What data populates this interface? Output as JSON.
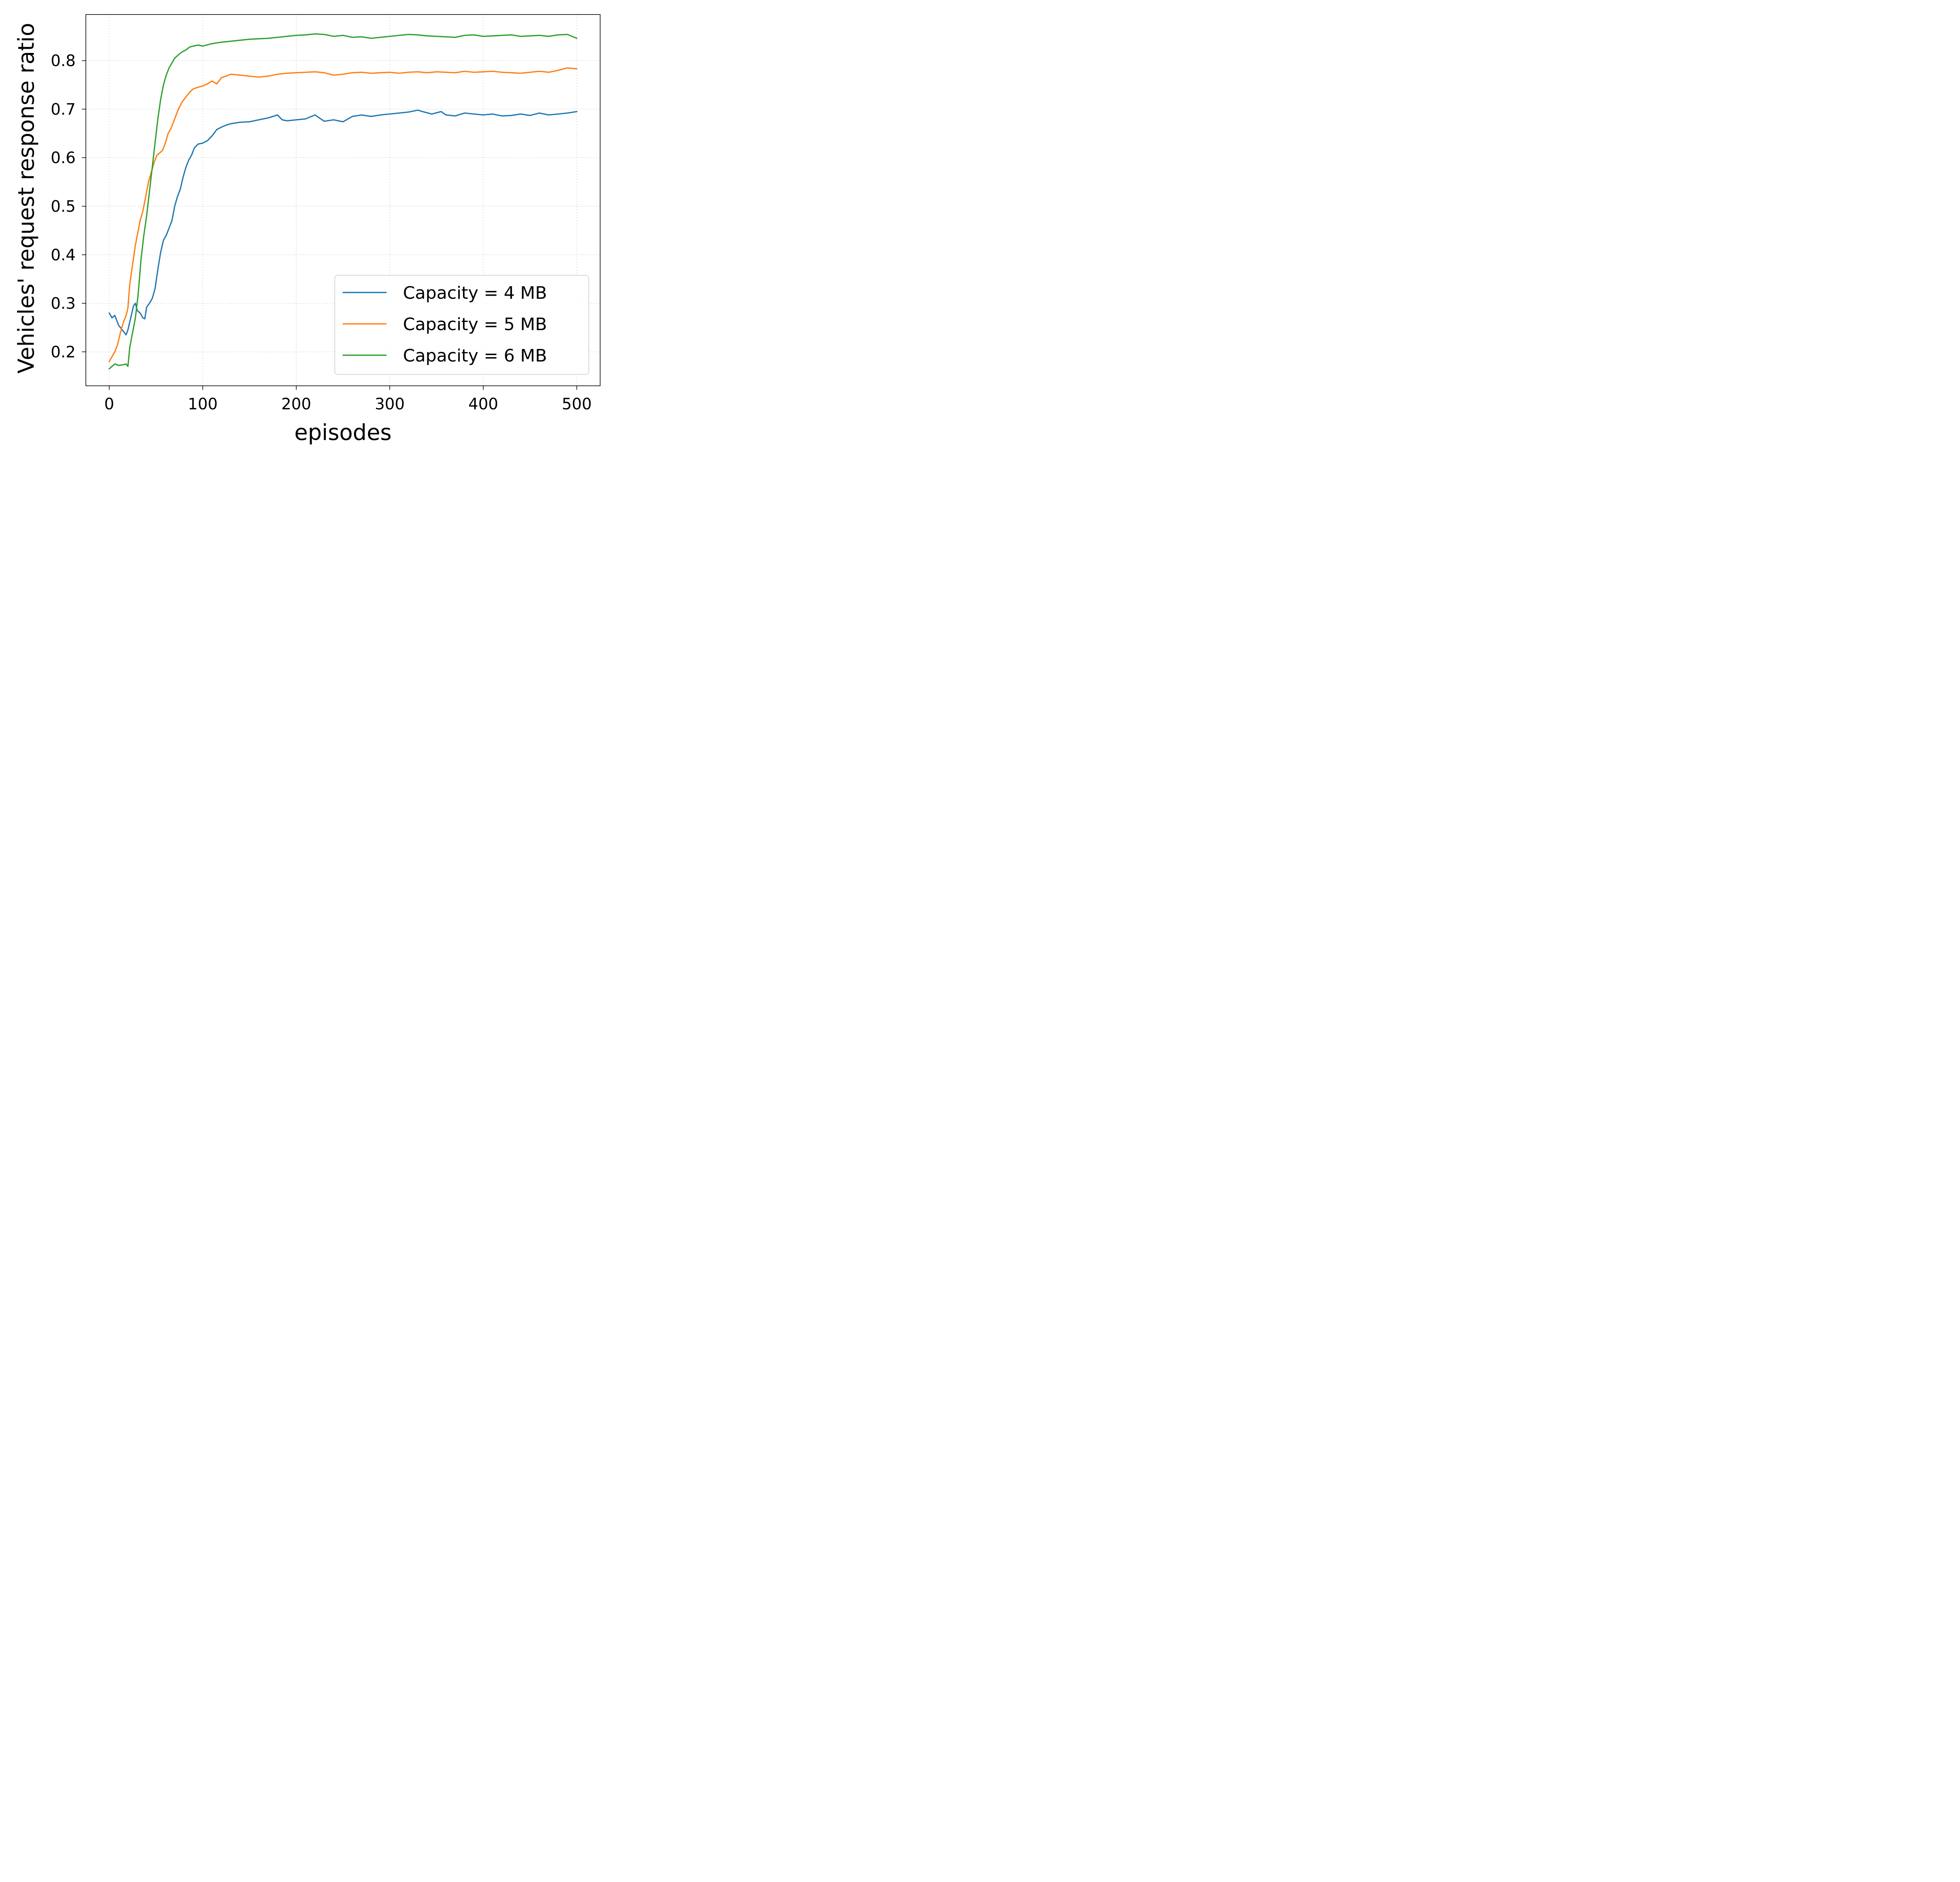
{
  "chart_data": {
    "type": "line",
    "xlabel": "episodes",
    "ylabel": "Vehicles' request response ratio",
    "xlim": [
      -25,
      525
    ],
    "ylim": [
      0.13,
      0.895
    ],
    "xticks": [
      0,
      100,
      200,
      300,
      400,
      500
    ],
    "xtick_labels": [
      "0",
      "100",
      "200",
      "300",
      "400",
      "500"
    ],
    "yticks": [
      0.2,
      0.3,
      0.4,
      0.5,
      0.6,
      0.7,
      0.8
    ],
    "ytick_labels": [
      "0.2",
      "0.3",
      "0.4",
      "0.5",
      "0.6",
      "0.7",
      "0.8"
    ],
    "grid": true,
    "legend_position": "lower-right",
    "series": [
      {
        "name": "Capacity = 4 MB",
        "color": "#1f77b4",
        "x": [
          0,
          3,
          6,
          10,
          14,
          18,
          20,
          23,
          26,
          28,
          30,
          33,
          36,
          38,
          40,
          43,
          46,
          49,
          52,
          55,
          58,
          61,
          64,
          67,
          70,
          73,
          76,
          79,
          82,
          85,
          88,
          91,
          95,
          100,
          105,
          110,
          115,
          120,
          125,
          130,
          140,
          150,
          160,
          170,
          180,
          185,
          190,
          200,
          210,
          220,
          230,
          240,
          250,
          260,
          270,
          280,
          290,
          300,
          310,
          320,
          330,
          335,
          345,
          355,
          360,
          370,
          380,
          390,
          400,
          410,
          420,
          430,
          440,
          450,
          460,
          470,
          480,
          490,
          500
        ],
        "y": [
          0.28,
          0.27,
          0.275,
          0.255,
          0.245,
          0.235,
          0.245,
          0.27,
          0.295,
          0.3,
          0.285,
          0.28,
          0.27,
          0.268,
          0.292,
          0.3,
          0.31,
          0.33,
          0.37,
          0.405,
          0.43,
          0.44,
          0.455,
          0.47,
          0.5,
          0.52,
          0.535,
          0.56,
          0.58,
          0.595,
          0.605,
          0.62,
          0.628,
          0.63,
          0.635,
          0.645,
          0.658,
          0.663,
          0.667,
          0.67,
          0.673,
          0.674,
          0.678,
          0.682,
          0.688,
          0.678,
          0.676,
          0.678,
          0.68,
          0.688,
          0.675,
          0.678,
          0.674,
          0.685,
          0.688,
          0.685,
          0.688,
          0.69,
          0.692,
          0.694,
          0.698,
          0.695,
          0.69,
          0.695,
          0.688,
          0.686,
          0.692,
          0.69,
          0.688,
          0.69,
          0.686,
          0.687,
          0.69,
          0.687,
          0.692,
          0.688,
          0.69,
          0.692,
          0.695
        ]
      },
      {
        "name": "Capacity = 5 MB",
        "color": "#ff7f0e",
        "x": [
          0,
          3,
          6,
          9,
          12,
          15,
          18,
          20,
          22,
          25,
          28,
          30,
          33,
          36,
          39,
          42,
          45,
          48,
          51,
          54,
          57,
          60,
          63,
          66,
          70,
          74,
          78,
          82,
          86,
          90,
          95,
          100,
          105,
          110,
          115,
          120,
          125,
          130,
          140,
          150,
          160,
          170,
          180,
          190,
          200,
          210,
          220,
          230,
          240,
          250,
          260,
          270,
          280,
          290,
          300,
          310,
          320,
          330,
          340,
          350,
          360,
          370,
          380,
          390,
          400,
          410,
          420,
          430,
          440,
          450,
          460,
          470,
          480,
          490,
          500
        ],
        "y": [
          0.18,
          0.19,
          0.2,
          0.215,
          0.24,
          0.26,
          0.275,
          0.29,
          0.34,
          0.38,
          0.42,
          0.44,
          0.47,
          0.49,
          0.52,
          0.55,
          0.57,
          0.59,
          0.605,
          0.61,
          0.615,
          0.63,
          0.65,
          0.66,
          0.68,
          0.7,
          0.715,
          0.725,
          0.735,
          0.742,
          0.745,
          0.748,
          0.752,
          0.758,
          0.752,
          0.765,
          0.768,
          0.772,
          0.77,
          0.768,
          0.766,
          0.768,
          0.772,
          0.774,
          0.775,
          0.776,
          0.777,
          0.775,
          0.77,
          0.772,
          0.775,
          0.776,
          0.774,
          0.775,
          0.776,
          0.774,
          0.776,
          0.777,
          0.775,
          0.777,
          0.776,
          0.775,
          0.778,
          0.776,
          0.777,
          0.778,
          0.776,
          0.775,
          0.774,
          0.776,
          0.778,
          0.776,
          0.78,
          0.785,
          0.783
        ]
      },
      {
        "name": "Capacity = 6 MB",
        "color": "#2ca02c",
        "x": [
          0,
          3,
          6,
          10,
          14,
          18,
          20,
          22,
          25,
          28,
          31,
          34,
          37,
          40,
          43,
          46,
          49,
          52,
          55,
          58,
          61,
          64,
          67,
          70,
          74,
          78,
          82,
          86,
          90,
          95,
          100,
          110,
          120,
          130,
          140,
          150,
          160,
          170,
          180,
          190,
          200,
          210,
          220,
          230,
          240,
          250,
          260,
          270,
          280,
          290,
          300,
          310,
          320,
          330,
          340,
          350,
          360,
          370,
          380,
          390,
          400,
          410,
          420,
          430,
          440,
          450,
          460,
          470,
          480,
          490,
          500
        ],
        "y": [
          0.165,
          0.17,
          0.175,
          0.172,
          0.173,
          0.175,
          0.17,
          0.21,
          0.24,
          0.27,
          0.32,
          0.39,
          0.44,
          0.48,
          0.53,
          0.58,
          0.63,
          0.68,
          0.72,
          0.75,
          0.77,
          0.785,
          0.795,
          0.805,
          0.812,
          0.818,
          0.822,
          0.828,
          0.83,
          0.832,
          0.83,
          0.835,
          0.838,
          0.84,
          0.842,
          0.844,
          0.845,
          0.846,
          0.848,
          0.85,
          0.852,
          0.853,
          0.855,
          0.854,
          0.85,
          0.852,
          0.848,
          0.849,
          0.846,
          0.848,
          0.85,
          0.852,
          0.854,
          0.853,
          0.851,
          0.85,
          0.849,
          0.848,
          0.852,
          0.853,
          0.85,
          0.851,
          0.852,
          0.853,
          0.85,
          0.851,
          0.852,
          0.85,
          0.853,
          0.854,
          0.846
        ]
      }
    ]
  }
}
